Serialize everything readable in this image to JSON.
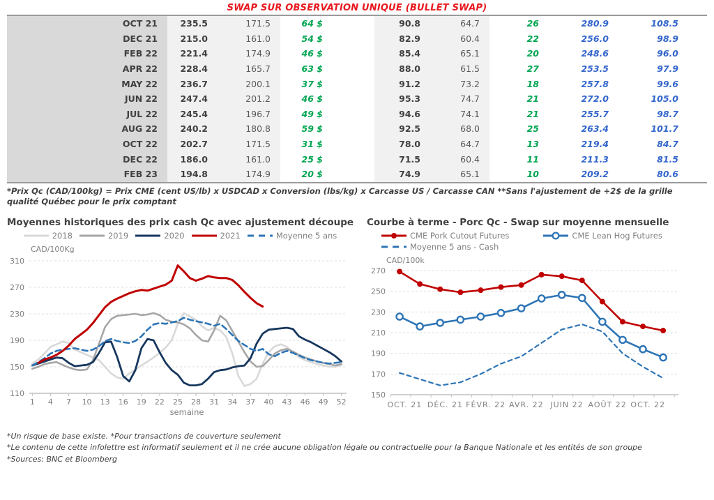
{
  "page_title": "SWAP SUR OBSERVATION UNIQUE (BULLET SWAP)",
  "table": {
    "rows": [
      {
        "month": "OCT 21",
        "values": [
          "235.5",
          "171.5",
          "64 $",
          "90.8",
          "64.7",
          "26",
          "280.9",
          "108.5"
        ]
      },
      {
        "month": "DEC 21",
        "values": [
          "215.0",
          "161.0",
          "54 $",
          "82.9",
          "60.4",
          "22",
          "256.0",
          "98.9"
        ]
      },
      {
        "month": "FEB 22",
        "values": [
          "221.4",
          "174.9",
          "46 $",
          "85.4",
          "65.1",
          "20",
          "248.6",
          "96.0"
        ]
      },
      {
        "month": "APR 22",
        "values": [
          "228.4",
          "165.7",
          "63 $",
          "88.0",
          "61.5",
          "27",
          "253.5",
          "97.9"
        ]
      },
      {
        "month": "MAY 22",
        "values": [
          "236.7",
          "200.1",
          "37 $",
          "91.2",
          "73.2",
          "18",
          "257.8",
          "99.6"
        ]
      },
      {
        "month": "JUN 22",
        "values": [
          "247.4",
          "201.2",
          "46 $",
          "95.3",
          "74.7",
          "21",
          "272.0",
          "105.0"
        ]
      },
      {
        "month": "JUL 22",
        "values": [
          "245.4",
          "196.7",
          "49 $",
          "94.6",
          "74.1",
          "21",
          "255.7",
          "98.7"
        ]
      },
      {
        "month": "AUG 22",
        "values": [
          "240.2",
          "180.8",
          "59 $",
          "92.5",
          "68.0",
          "25",
          "263.4",
          "101.7"
        ]
      },
      {
        "month": "OCT 22",
        "values": [
          "202.7",
          "171.5",
          "31 $",
          "78.0",
          "64.7",
          "13",
          "219.4",
          "84.7"
        ]
      },
      {
        "month": "DEC 22",
        "values": [
          "186.0",
          "161.0",
          "25 $",
          "71.5",
          "60.4",
          "11",
          "211.3",
          "81.5"
        ]
      },
      {
        "month": "FEB 23",
        "values": [
          "194.8",
          "174.9",
          "20 $",
          "74.9",
          "65.1",
          "10",
          "209.2",
          "80.6"
        ]
      }
    ],
    "footnote": "*Prix Qc (CAD/100kg) = Prix CME (cent US/lb) x USDCAD x Conversion (lbs/kg) x Carcasse US / Carcasse CAN **Sans l'ajustement de +2$ de la grille qualité Québec pour le prix comptant"
  },
  "chart_data": [
    {
      "type": "line",
      "title": "Moyennes historiques des prix cash Qc avec ajustement découpe",
      "ylabel": "CAD/100Kg",
      "xlabel": "semaine",
      "ylim": [
        110,
        310
      ],
      "yticks": [
        110,
        150,
        190,
        230,
        270,
        310
      ],
      "xticks": [
        1,
        4,
        7,
        10,
        13,
        16,
        19,
        22,
        25,
        28,
        31,
        34,
        37,
        40,
        43,
        46,
        49,
        52
      ],
      "xrange": [
        0.5,
        52.5
      ],
      "grid": "horizontal-dashed",
      "legend_position": "top-center",
      "draw_order": [
        0,
        1,
        2,
        4,
        3
      ],
      "series": [
        {
          "name": "2018",
          "color": "#d9d9d9",
          "dash": false,
          "width": 2.6,
          "values": [
            155,
            161,
            170,
            180,
            184,
            188,
            186,
            176,
            172,
            168,
            164,
            160,
            150,
            140,
            134,
            132,
            140,
            146,
            152,
            158,
            164,
            171,
            179,
            190,
            215,
            231,
            226,
            221,
            211,
            205,
            209,
            205,
            195,
            170,
            136,
            121,
            124,
            132,
            155,
            172,
            181,
            184,
            180,
            172,
            165,
            160,
            157,
            154,
            152,
            150,
            150,
            153
          ]
        },
        {
          "name": "2019",
          "color": "#a6a6a6",
          "dash": false,
          "width": 2.6,
          "values": [
            147,
            150,
            154,
            156,
            157,
            153,
            149,
            146,
            145,
            146,
            160,
            185,
            210,
            222,
            227,
            228,
            229,
            230,
            228,
            229,
            231,
            228,
            221,
            218,
            217,
            214,
            208,
            198,
            190,
            188,
            205,
            227,
            220,
            204,
            188,
            172,
            158,
            150,
            151,
            160,
            170,
            175,
            177,
            173,
            168,
            164,
            161,
            158,
            156,
            154,
            152,
            154
          ]
        },
        {
          "name": "2020",
          "color": "#17375e",
          "dash": false,
          "width": 2.8,
          "values": [
            152,
            155,
            158,
            161,
            164,
            163,
            156,
            151,
            152,
            153,
            157,
            171,
            187,
            188,
            165,
            136,
            128,
            145,
            178,
            192,
            190,
            172,
            156,
            145,
            138,
            126,
            122,
            122,
            124,
            132,
            142,
            145,
            146,
            149,
            151,
            152,
            163,
            185,
            200,
            206,
            207,
            208,
            209,
            207,
            196,
            191,
            187,
            182,
            177,
            172,
            166,
            158
          ]
        },
        {
          "name": "2021",
          "color": "#c00000",
          "dash": false,
          "width": 3,
          "values": [
            null,
            156,
            161,
            164,
            168,
            174,
            182,
            192,
            199,
            206,
            216,
            228,
            240,
            248,
            253,
            257,
            261,
            264,
            266,
            265,
            268,
            271,
            274,
            280,
            303,
            294,
            284,
            280,
            283,
            287,
            285,
            284,
            284,
            281,
            273,
            263,
            254,
            246,
            241,
            null,
            null,
            null,
            null,
            null,
            null,
            null,
            null,
            null,
            null,
            null,
            null,
            null
          ]
        },
        {
          "name": "Moyenne 5 ans",
          "color": "#2e75b6",
          "dash": true,
          "width": 2.6,
          "values": [
            152,
            157,
            163,
            170,
            174,
            176,
            177,
            178,
            176,
            174,
            176,
            181,
            189,
            192,
            189,
            187,
            186,
            189,
            196,
            206,
            214,
            216,
            215,
            217,
            219,
            224,
            221,
            219,
            217,
            215,
            212,
            215,
            207,
            198,
            189,
            183,
            177,
            174,
            177,
            169,
            166,
            171,
            174,
            171,
            167,
            163,
            160,
            158,
            156,
            155,
            156,
            157
          ]
        }
      ]
    },
    {
      "type": "line",
      "title": "Courbe à terme - Porc Qc - Swap sur moyenne mensuelle",
      "ylabel": "CAD/100k",
      "ylim": [
        150,
        270
      ],
      "yticks": [
        150,
        170,
        190,
        210,
        230,
        250,
        270
      ],
      "x_labels": [
        "OCT. 21",
        "DÉC. 21",
        "FÉVR. 22",
        "AVR. 22",
        "JUIN 22",
        "AOÛT 22",
        "OCT. 22"
      ],
      "label_every": 2,
      "xrange": [
        -0.45,
        13.65
      ],
      "grid": "horizontal-dashed",
      "legend_position": "top-left",
      "legend_rows": [
        [
          0,
          1
        ],
        [
          2
        ]
      ],
      "draw_order": [
        2,
        0,
        1
      ],
      "series": [
        {
          "name": "CME Pork Cutout Futures",
          "color": "#c00000",
          "dash": false,
          "width": 2.6,
          "marker": "filled-circle",
          "values": [
            269,
            257,
            252,
            249,
            251,
            254,
            256,
            266,
            264.5,
            260.5,
            240,
            220.5,
            216,
            212
          ]
        },
        {
          "name": "CME Lean Hog Futures",
          "color": "#2e75b6",
          "dash": false,
          "width": 2.6,
          "marker": "open-circle",
          "values": [
            225.5,
            216,
            219.5,
            222.5,
            225.5,
            229,
            233.5,
            243,
            246.5,
            243.5,
            220.5,
            203,
            194,
            186
          ]
        },
        {
          "name": "Moyenne 5 ans - Cash",
          "color": "#2e75b6",
          "dash": true,
          "width": 2.2,
          "values": [
            171,
            165,
            159,
            162,
            170,
            180,
            187,
            200,
            213,
            218,
            211,
            190,
            177,
            166
          ]
        }
      ]
    }
  ],
  "notes": [
    "*Un risque de base existe. *Pour transactions de couverture seulement",
    "*Le contenu de cette infolettre est informatif seulement et il ne crée aucune obligation légale ou contractuelle pour la Banque Nationale et les entités de son groupe",
    "*Sources: BNC et Bloomberg"
  ],
  "colors": {
    "title_red": "#e8191f",
    "green_value": "#00a651",
    "blue_value": "#3366cc",
    "grid": "#d9d9d9",
    "axis_text": "#808080"
  }
}
